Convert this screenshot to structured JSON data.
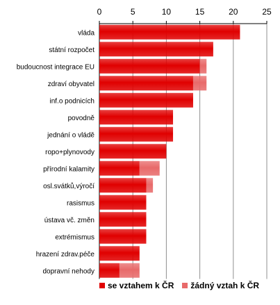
{
  "chart_data": {
    "type": "bar",
    "orientation": "horizontal",
    "stacked": true,
    "categories": [
      "vláda",
      "státní rozpočet",
      "budoucnost integrace EU",
      "zdraví obyvatel",
      "inf.o podnicích",
      "povodně",
      "jednání o vládě",
      "ropo+plynovody",
      "přírodní kalamity",
      "osl.svátků,výročí",
      "rasismus",
      "ústava vč. změn",
      "extrémismus",
      "hrazení zdrav.péče",
      "dopravní nehody"
    ],
    "series": [
      {
        "name": "se vztahem k ČR",
        "color": "#e00000",
        "values": [
          21,
          17,
          15,
          14,
          14,
          11,
          11,
          10,
          6,
          7,
          7,
          7,
          7,
          6,
          3
        ]
      },
      {
        "name": "žádný vztah k ČR",
        "color": "#e86a6a",
        "values": [
          0,
          0,
          1,
          2,
          0,
          0,
          0,
          0,
          3,
          1,
          0,
          0,
          0,
          0,
          3
        ]
      }
    ],
    "x_ticks": [
      "0",
      "5",
      "10",
      "15",
      "20",
      "25"
    ],
    "xlim": [
      0,
      25
    ],
    "grid": "vertical",
    "axis_position": "top",
    "legend_position": "bottom"
  }
}
